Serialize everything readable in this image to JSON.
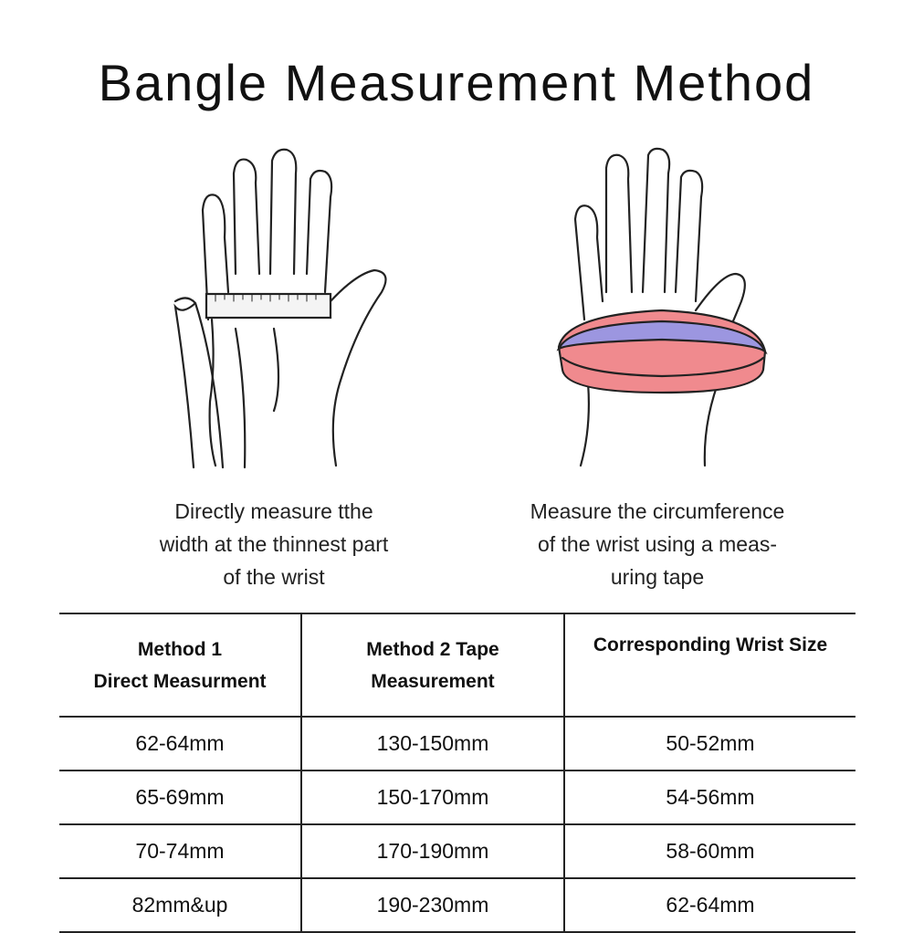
{
  "title": "Bangle Measurement Method",
  "captions": {
    "method1": "Directly measure tthe\nwidth at the thinnest part\nof the wrist",
    "method2": "Measure the circumference\nof the wrist using a meas-\nuring tape"
  },
  "colors": {
    "tape_band": "#f08a8e",
    "tape_inner": "#9c96e0"
  },
  "table": {
    "headers": [
      "Method 1\nDirect Measurment",
      "Method 2  Tape\nMeasurement",
      "Corresponding Wrist Size"
    ],
    "rows": [
      [
        "62-64mm",
        "130-150mm",
        "50-52mm"
      ],
      [
        "65-69mm",
        "150-170mm",
        "54-56mm"
      ],
      [
        "70-74mm",
        "170-190mm",
        "58-60mm"
      ],
      [
        "82mm&up",
        "190-230mm",
        "62-64mm"
      ]
    ]
  }
}
